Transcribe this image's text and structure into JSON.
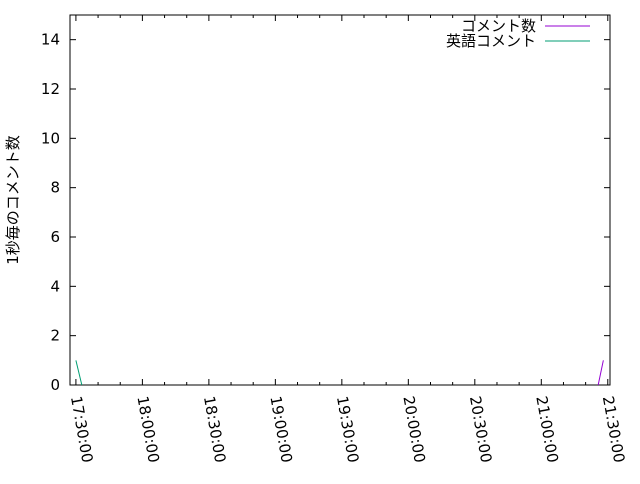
{
  "chart_data": {
    "type": "line",
    "title": "",
    "xlabel": "",
    "ylabel": "1秒毎のコメント数",
    "xlim": [
      "17:27:20",
      "21:31:00"
    ],
    "ylim": [
      0,
      15
    ],
    "xticks": [
      "17:30:00",
      "18:00:00",
      "18:30:00",
      "19:00:00",
      "19:30:00",
      "20:00:00",
      "20:30:00",
      "21:00:00",
      "21:30:00"
    ],
    "yticks": [
      0,
      2,
      4,
      6,
      8,
      10,
      12,
      14
    ],
    "grid": false,
    "legend": "top-right",
    "series": [
      {
        "name": "コメント数",
        "color": "#9400d3",
        "points": [
          [
            "21:25:40",
            0
          ],
          [
            "21:28:00",
            1
          ]
        ]
      },
      {
        "name": "英語コメント",
        "color": "#009e73",
        "points": [
          [
            "17:30:00",
            1
          ],
          [
            "17:32:40",
            0
          ]
        ]
      }
    ]
  }
}
